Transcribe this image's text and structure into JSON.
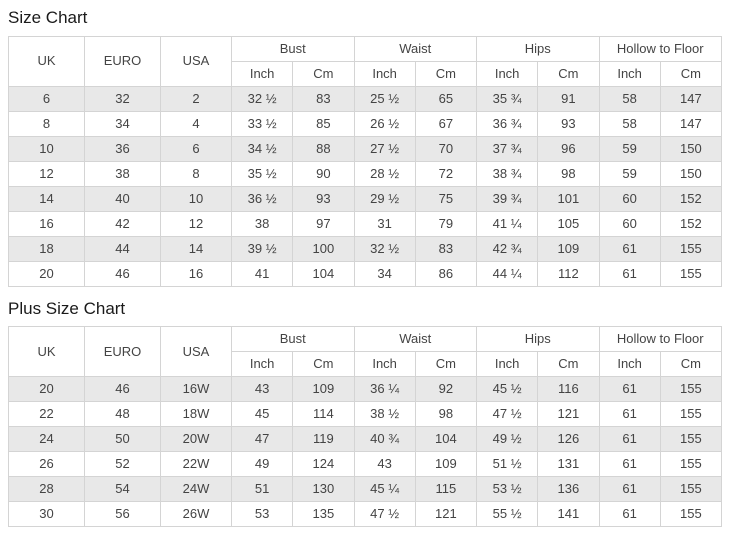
{
  "header": {
    "uk": "UK",
    "euro": "EURO",
    "usa": "USA",
    "groups": [
      "Bust",
      "Waist",
      "Hips",
      "Hollow to Floor"
    ],
    "inch": "Inch",
    "cm": "Cm"
  },
  "colors": {
    "row_alt": "#e8e8e8",
    "border": "#d4d4d4",
    "text": "#444444",
    "title": "#1a1a1a",
    "background": "#ffffff"
  },
  "sections": [
    {
      "title": "Size Chart",
      "rows": [
        [
          "6",
          "32",
          "2",
          "32 ½",
          "83",
          "25 ½",
          "65",
          "35 ¾",
          "91",
          "58",
          "147"
        ],
        [
          "8",
          "34",
          "4",
          "33 ½",
          "85",
          "26 ½",
          "67",
          "36 ¾",
          "93",
          "58",
          "147"
        ],
        [
          "10",
          "36",
          "6",
          "34 ½",
          "88",
          "27 ½",
          "70",
          "37 ¾",
          "96",
          "59",
          "150"
        ],
        [
          "12",
          "38",
          "8",
          "35 ½",
          "90",
          "28 ½",
          "72",
          "38 ¾",
          "98",
          "59",
          "150"
        ],
        [
          "14",
          "40",
          "10",
          "36 ½",
          "93",
          "29 ½",
          "75",
          "39 ¾",
          "101",
          "60",
          "152"
        ],
        [
          "16",
          "42",
          "12",
          "38",
          "97",
          "31",
          "79",
          "41 ¼",
          "105",
          "60",
          "152"
        ],
        [
          "18",
          "44",
          "14",
          "39 ½",
          "100",
          "32 ½",
          "83",
          "42 ¾",
          "109",
          "61",
          "155"
        ],
        [
          "20",
          "46",
          "16",
          "41",
          "104",
          "34",
          "86",
          "44 ¼",
          "112",
          "61",
          "155"
        ]
      ]
    },
    {
      "title": "Plus Size Chart",
      "rows": [
        [
          "20",
          "46",
          "16W",
          "43",
          "109",
          "36 ¼",
          "92",
          "45 ½",
          "116",
          "61",
          "155"
        ],
        [
          "22",
          "48",
          "18W",
          "45",
          "114",
          "38 ½",
          "98",
          "47 ½",
          "121",
          "61",
          "155"
        ],
        [
          "24",
          "50",
          "20W",
          "47",
          "119",
          "40 ¾",
          "104",
          "49 ½",
          "126",
          "61",
          "155"
        ],
        [
          "26",
          "52",
          "22W",
          "49",
          "124",
          "43",
          "109",
          "51 ½",
          "131",
          "61",
          "155"
        ],
        [
          "28",
          "54",
          "24W",
          "51",
          "130",
          "45 ¼",
          "115",
          "53 ½",
          "136",
          "61",
          "155"
        ],
        [
          "30",
          "56",
          "26W",
          "53",
          "135",
          "47 ½",
          "121",
          "55 ½",
          "141",
          "61",
          "155"
        ]
      ]
    }
  ]
}
